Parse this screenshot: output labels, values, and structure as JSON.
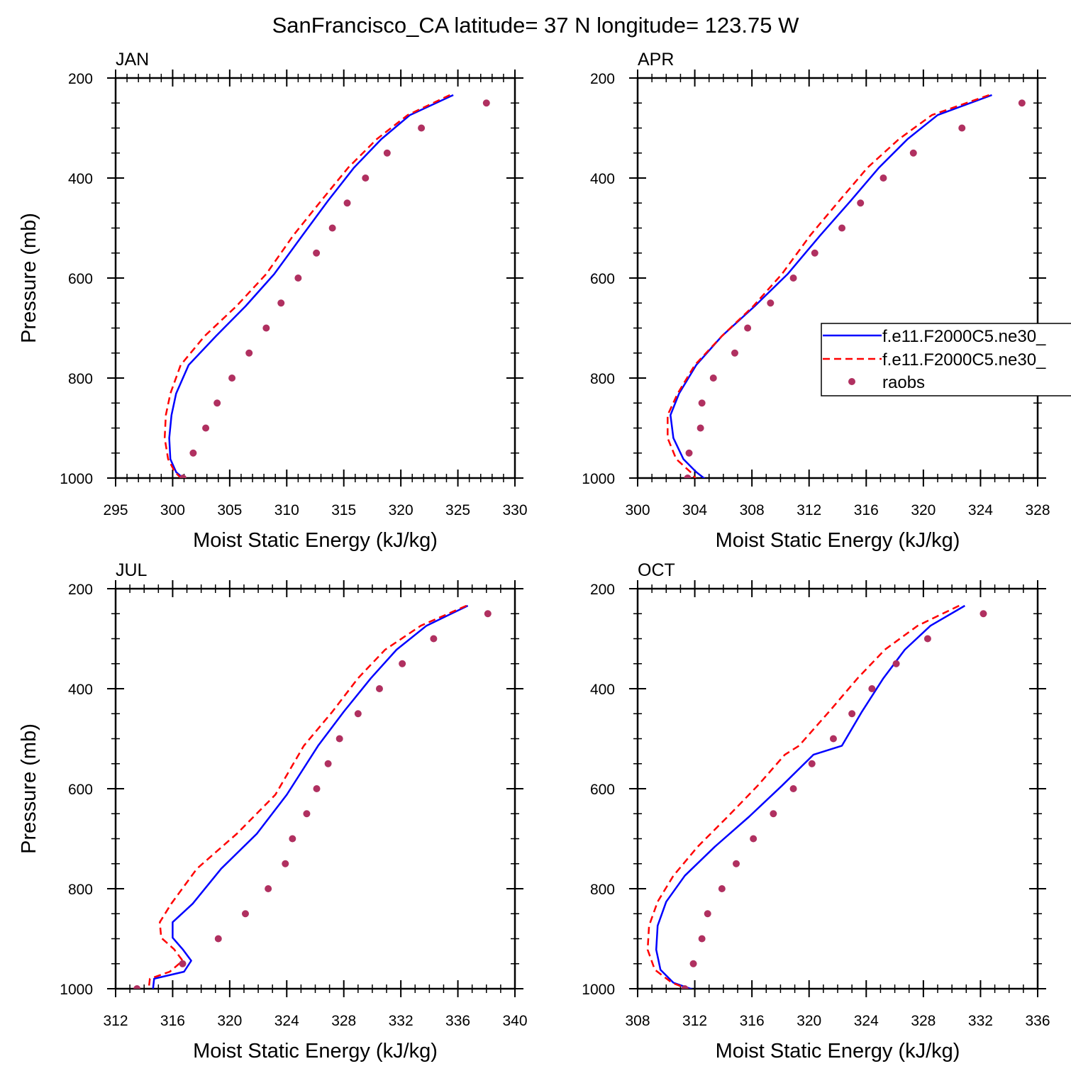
{
  "title": "SanFrancisco_CA  latitude= 37 N longitude= 123.75 W",
  "colors": {
    "model1": "#0000ff",
    "model2": "#ff0000",
    "obs": "#b03060",
    "axis": "#000000"
  },
  "legend": {
    "entries": [
      {
        "label": "f.e11.F2000C5.ne30_",
        "style": "solid-line",
        "color": "#0000ff"
      },
      {
        "label": "f.e11.F2000C5.ne30_",
        "style": "dashed-line",
        "color": "#ff0000"
      },
      {
        "label": "raobs",
        "style": "marker",
        "color": "#b03060"
      }
    ]
  },
  "chart_data": [
    {
      "type": "line",
      "panel": "JAN",
      "xlabel": "Moist Static Energy (kJ/kg)",
      "ylabel": "Pressure (mb)",
      "xlim": [
        295,
        330
      ],
      "xticks": [
        "295",
        "300",
        "305",
        "310",
        "315",
        "320",
        "325",
        "330"
      ],
      "xminor": 1,
      "ylim": [
        200,
        1000
      ],
      "yticks": [
        "200",
        "400",
        "600",
        "800",
        "1000"
      ],
      "series": [
        {
          "name": "f.e11.F2000C5.ne30_",
          "style": "solid",
          "color": "#0000ff",
          "x": [
            324.6,
            320.8,
            318.3,
            315.9,
            313.6,
            311.4,
            308.9,
            306.4,
            303.8,
            301.4,
            300.3,
            299.9,
            299.7,
            299.8,
            300.3,
            301.2
          ],
          "y": [
            234,
            274,
            322,
            379,
            446,
            514,
            592,
            656,
            716,
            774,
            831,
            874,
            920,
            962,
            988,
            1006
          ]
        },
        {
          "name": "f.e11.F2000C5.ne30_",
          "style": "dashed",
          "color": "#ff0000",
          "x": [
            324.3,
            320.6,
            317.9,
            315.4,
            313.0,
            310.6,
            308.2,
            305.6,
            302.8,
            300.7,
            299.8,
            299.4,
            299.3,
            299.6,
            300.2,
            301.0
          ],
          "y": [
            234,
            274,
            322,
            379,
            446,
            514,
            592,
            656,
            716,
            774,
            831,
            874,
            920,
            962,
            988,
            1006
          ]
        },
        {
          "name": "raobs",
          "style": "marker",
          "color": "#b03060",
          "x": [
            327.5,
            321.8,
            318.8,
            316.9,
            315.3,
            314.0,
            312.6,
            311.0,
            309.5,
            308.2,
            306.7,
            305.2,
            303.9,
            302.9,
            301.8,
            300.9
          ],
          "y": [
            250,
            300,
            350,
            400,
            450,
            500,
            550,
            600,
            650,
            700,
            750,
            800,
            850,
            900,
            950,
            1000
          ]
        }
      ]
    },
    {
      "type": "line",
      "panel": "APR",
      "xlabel": "Moist Static Energy (kJ/kg)",
      "ylabel": "",
      "xlim": [
        300,
        328
      ],
      "xticks": [
        "300",
        "304",
        "308",
        "312",
        "316",
        "320",
        "324",
        "328"
      ],
      "xminor": 1,
      "ylim": [
        200,
        1000
      ],
      "yticks": [
        "200",
        "400",
        "600",
        "800",
        "1000"
      ],
      "series": [
        {
          "name": "f.e11.F2000C5.ne30_",
          "style": "solid",
          "color": "#0000ff",
          "x": [
            324.8,
            321.0,
            318.9,
            316.9,
            314.9,
            312.8,
            310.5,
            308.2,
            305.9,
            304.1,
            302.9,
            302.3,
            302.5,
            303.2,
            304.1,
            304.9
          ],
          "y": [
            234,
            274,
            322,
            379,
            446,
            514,
            592,
            656,
            716,
            774,
            831,
            874,
            920,
            962,
            988,
            1006
          ]
        },
        {
          "name": "f.e11.F2000C5.ne30_",
          "style": "dashed",
          "color": "#ff0000",
          "x": [
            324.6,
            320.6,
            318.3,
            316.1,
            314.1,
            312.1,
            310.1,
            308.1,
            305.9,
            304.0,
            302.8,
            302.1,
            302.1,
            302.7,
            303.7,
            304.2
          ],
          "y": [
            234,
            274,
            322,
            379,
            446,
            514,
            592,
            656,
            716,
            774,
            831,
            874,
            920,
            962,
            988,
            1006
          ]
        },
        {
          "name": "raobs",
          "style": "marker",
          "color": "#b03060",
          "x": [
            326.9,
            322.7,
            319.3,
            317.2,
            315.6,
            314.3,
            312.4,
            310.9,
            309.3,
            307.7,
            306.8,
            305.3,
            304.5,
            304.4,
            303.6,
            303.5
          ],
          "y": [
            250,
            300,
            350,
            400,
            450,
            500,
            550,
            600,
            650,
            700,
            750,
            800,
            850,
            900,
            950,
            1000
          ]
        }
      ]
    },
    {
      "type": "line",
      "panel": "JUL",
      "xlabel": "Moist Static Energy (kJ/kg)",
      "ylabel": "Pressure (mb)",
      "xlim": [
        312,
        340
      ],
      "xticks": [
        "312",
        "316",
        "320",
        "324",
        "328",
        "332",
        "336",
        "340"
      ],
      "xminor": 1,
      "ylim": [
        200,
        1000
      ],
      "yticks": [
        "200",
        "400",
        "600",
        "800",
        "1000"
      ],
      "series": [
        {
          "name": "f.e11.F2000C5.ne30_",
          "style": "solid",
          "color": "#0000ff",
          "x": [
            336.7,
            333.8,
            331.7,
            329.9,
            328.0,
            326.2,
            324.0,
            321.9,
            319.4,
            317.4,
            316.0,
            316.0,
            316.7,
            317.3,
            316.8,
            314.7,
            314.6
          ],
          "y": [
            234,
            274,
            322,
            379,
            446,
            514,
            612,
            690,
            760,
            830,
            867,
            898,
            921,
            944,
            966,
            980,
            1006
          ]
        },
        {
          "name": "f.e11.F2000C5.ne30_",
          "style": "dashed",
          "color": "#ff0000",
          "x": [
            336.6,
            333.4,
            330.9,
            329.0,
            327.2,
            325.2,
            323.2,
            320.5,
            317.7,
            315.9,
            315.1,
            315.2,
            316.1,
            316.7,
            315.8,
            314.4,
            314.3
          ],
          "y": [
            234,
            274,
            322,
            379,
            446,
            514,
            612,
            690,
            760,
            830,
            867,
            898,
            921,
            944,
            966,
            980,
            1006
          ]
        },
        {
          "name": "raobs",
          "style": "marker",
          "color": "#b03060",
          "x": [
            338.1,
            334.3,
            332.1,
            330.5,
            329.0,
            327.7,
            326.9,
            326.1,
            325.4,
            324.4,
            323.9,
            322.7,
            321.1,
            319.2,
            316.7,
            313.5
          ],
          "y": [
            250,
            300,
            350,
            400,
            450,
            500,
            550,
            600,
            650,
            700,
            750,
            800,
            850,
            900,
            950,
            1000
          ]
        }
      ]
    },
    {
      "type": "line",
      "panel": "OCT",
      "xlabel": "Moist Static Energy (kJ/kg)",
      "ylabel": "",
      "xlim": [
        308,
        336
      ],
      "xticks": [
        "308",
        "312",
        "316",
        "320",
        "324",
        "328",
        "332",
        "336"
      ],
      "xminor": 1,
      "ylim": [
        200,
        1000
      ],
      "yticks": [
        "200",
        "400",
        "600",
        "800",
        "1000"
      ],
      "series": [
        {
          "name": "f.e11.F2000C5.ne30_",
          "style": "solid",
          "color": "#0000ff",
          "x": [
            330.9,
            328.5,
            326.7,
            325.2,
            323.7,
            322.3,
            320.3,
            318.1,
            315.8,
            313.4,
            311.3,
            310.0,
            309.4,
            309.3,
            309.6,
            310.5,
            312.3
          ],
          "y": [
            234,
            274,
            322,
            379,
            446,
            514,
            532,
            594,
            656,
            716,
            774,
            826,
            874,
            922,
            962,
            988,
            1006
          ]
        },
        {
          "name": "f.e11.F2000C5.ne30_",
          "style": "dashed",
          "color": "#ff0000",
          "x": [
            330.5,
            327.6,
            325.3,
            323.4,
            321.4,
            319.3,
            318.3,
            316.4,
            314.3,
            312.2,
            310.5,
            309.4,
            308.8,
            308.7,
            309.2,
            310.4,
            312.0
          ],
          "y": [
            234,
            274,
            322,
            379,
            446,
            514,
            532,
            594,
            656,
            716,
            774,
            826,
            874,
            922,
            962,
            988,
            1006
          ]
        },
        {
          "name": "raobs",
          "style": "marker",
          "color": "#b03060",
          "x": [
            332.2,
            328.3,
            326.1,
            324.4,
            323.0,
            321.7,
            320.2,
            318.9,
            317.5,
            316.1,
            314.9,
            313.9,
            312.9,
            312.5,
            311.9,
            311.3
          ],
          "y": [
            250,
            300,
            350,
            400,
            450,
            500,
            550,
            600,
            650,
            700,
            750,
            800,
            850,
            900,
            950,
            1000
          ]
        }
      ]
    }
  ]
}
